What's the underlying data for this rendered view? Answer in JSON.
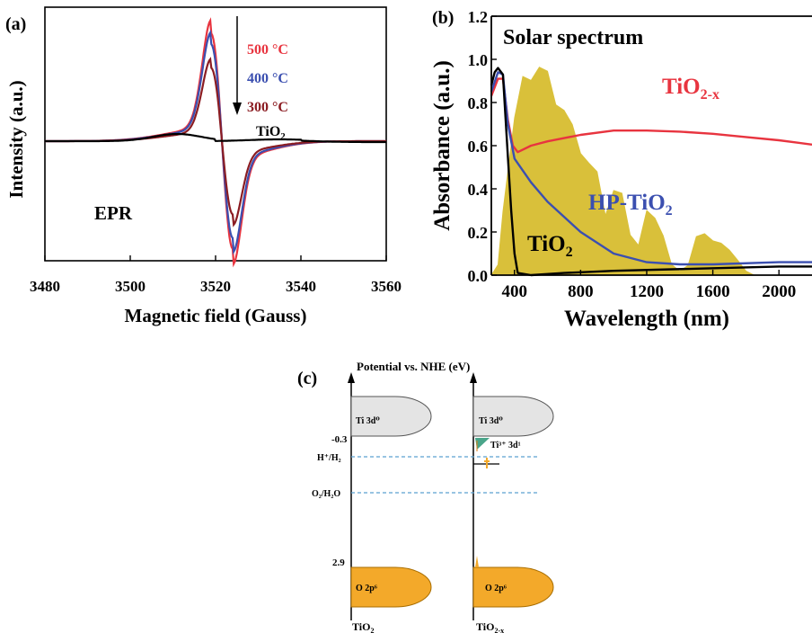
{
  "chart_data": [
    {
      "type": "line",
      "panel_label": "(a)",
      "xlabel": "Magnetic field (Gauss)",
      "ylabel": "Intensity (a.u.)",
      "xlim": [
        3480,
        3560
      ],
      "xticks": [
        "3480",
        "3500",
        "3520",
        "3540",
        "3560"
      ],
      "annotation": "EPR",
      "arrow_direction": "down",
      "series": [
        {
          "name": "500 °C",
          "color": "#e8343f",
          "peak_x": 3519,
          "trough_x": 3524,
          "amplitude": 1.0
        },
        {
          "name": "400 °C",
          "color": "#3b4fb0",
          "peak_x": 3519,
          "trough_x": 3524,
          "amplitude": 0.9
        },
        {
          "name": "300 °C",
          "color": "#8b1c22",
          "peak_x": 3519,
          "trough_x": 3524,
          "amplitude": 0.68
        },
        {
          "name": "TiO",
          "sub": "2",
          "color": "#000000",
          "peak_x": 3511,
          "amplitude": 0.04
        }
      ]
    },
    {
      "type": "line",
      "panel_label": "(b)",
      "xlabel": "Wavelength (nm)",
      "ylabel": "Absorbance (a.u.)",
      "xlim": [
        260,
        2200
      ],
      "ylim": [
        0,
        1.2
      ],
      "xticks": [
        "400",
        "800",
        "1200",
        "1600",
        "2000"
      ],
      "yticks": [
        "0.0",
        "0.2",
        "0.4",
        "0.6",
        "0.8",
        "1.0",
        "1.2"
      ],
      "annotation": "Solar spectrum",
      "area_color": "#d9c03a",
      "series": [
        {
          "name": "TiO",
          "sub": "2-x",
          "color": "#e8343f",
          "x": [
            260,
            300,
            330,
            360,
            390,
            420,
            500,
            600,
            800,
            1000,
            1200,
            1400,
            1600,
            1800,
            2000,
            2200
          ],
          "y": [
            0.83,
            0.91,
            0.91,
            0.72,
            0.6,
            0.57,
            0.6,
            0.62,
            0.65,
            0.67,
            0.67,
            0.665,
            0.655,
            0.64,
            0.625,
            0.605
          ]
        },
        {
          "name": "HP-TiO",
          "sub": "2",
          "color": "#3b4fb0",
          "x": [
            260,
            300,
            330,
            360,
            400,
            500,
            600,
            800,
            1000,
            1200,
            1400,
            1600,
            2000,
            2200
          ],
          "y": [
            0.85,
            0.94,
            0.93,
            0.7,
            0.54,
            0.43,
            0.34,
            0.2,
            0.1,
            0.06,
            0.05,
            0.05,
            0.06,
            0.06
          ]
        },
        {
          "name": "TiO",
          "sub": "2",
          "color": "#000000",
          "x": [
            260,
            280,
            300,
            330,
            360,
            380,
            400,
            420,
            500,
            700,
            1000,
            1500,
            2000,
            2200
          ],
          "y": [
            0.88,
            0.94,
            0.96,
            0.93,
            0.55,
            0.3,
            0.1,
            0.01,
            0.0,
            0.01,
            0.02,
            0.03,
            0.04,
            0.04
          ]
        },
        {
          "name": "Solar spectrum",
          "type": "area",
          "x": [
            260,
            300,
            330,
            360,
            400,
            450,
            500,
            550,
            600,
            650,
            700,
            750,
            800,
            850,
            900,
            950,
            1000,
            1050,
            1100,
            1150,
            1200,
            1250,
            1300,
            1350,
            1400,
            1450,
            1500,
            1550,
            1600,
            1650,
            1700,
            1750,
            1800,
            1850,
            1900,
            1950,
            2000
          ],
          "y": [
            0.0,
            0.05,
            0.3,
            0.55,
            0.75,
            0.93,
            1.02,
            1.0,
            0.95,
            0.88,
            0.8,
            0.7,
            0.62,
            0.55,
            0.48,
            0.3,
            0.42,
            0.38,
            0.2,
            0.15,
            0.3,
            0.28,
            0.2,
            0.05,
            0.02,
            0.05,
            0.18,
            0.2,
            0.18,
            0.15,
            0.12,
            0.08,
            0.02,
            0.0,
            0.0,
            0.0,
            0.0
          ]
        }
      ]
    },
    {
      "type": "diagram",
      "panel_label": "(c)",
      "title": "Potential vs. NHE (eV)",
      "levels": [
        "-0.3",
        "H⁺/H₂",
        "O₂/H₂O",
        "2.9"
      ],
      "columns": [
        {
          "name": "TiO",
          "sub": "2",
          "cb": "Ti 3d⁰",
          "vb": "O 2p⁶"
        },
        {
          "name": "TiO",
          "sub": "2-x",
          "cb": "Ti 3d⁰",
          "vb": "O 2p⁶",
          "midgap": "Ti³⁺ 3d¹"
        }
      ],
      "colors": {
        "cb": "#e4e4e4",
        "vb": "#f3a92a",
        "dashed": "#5aa0d0"
      }
    }
  ]
}
